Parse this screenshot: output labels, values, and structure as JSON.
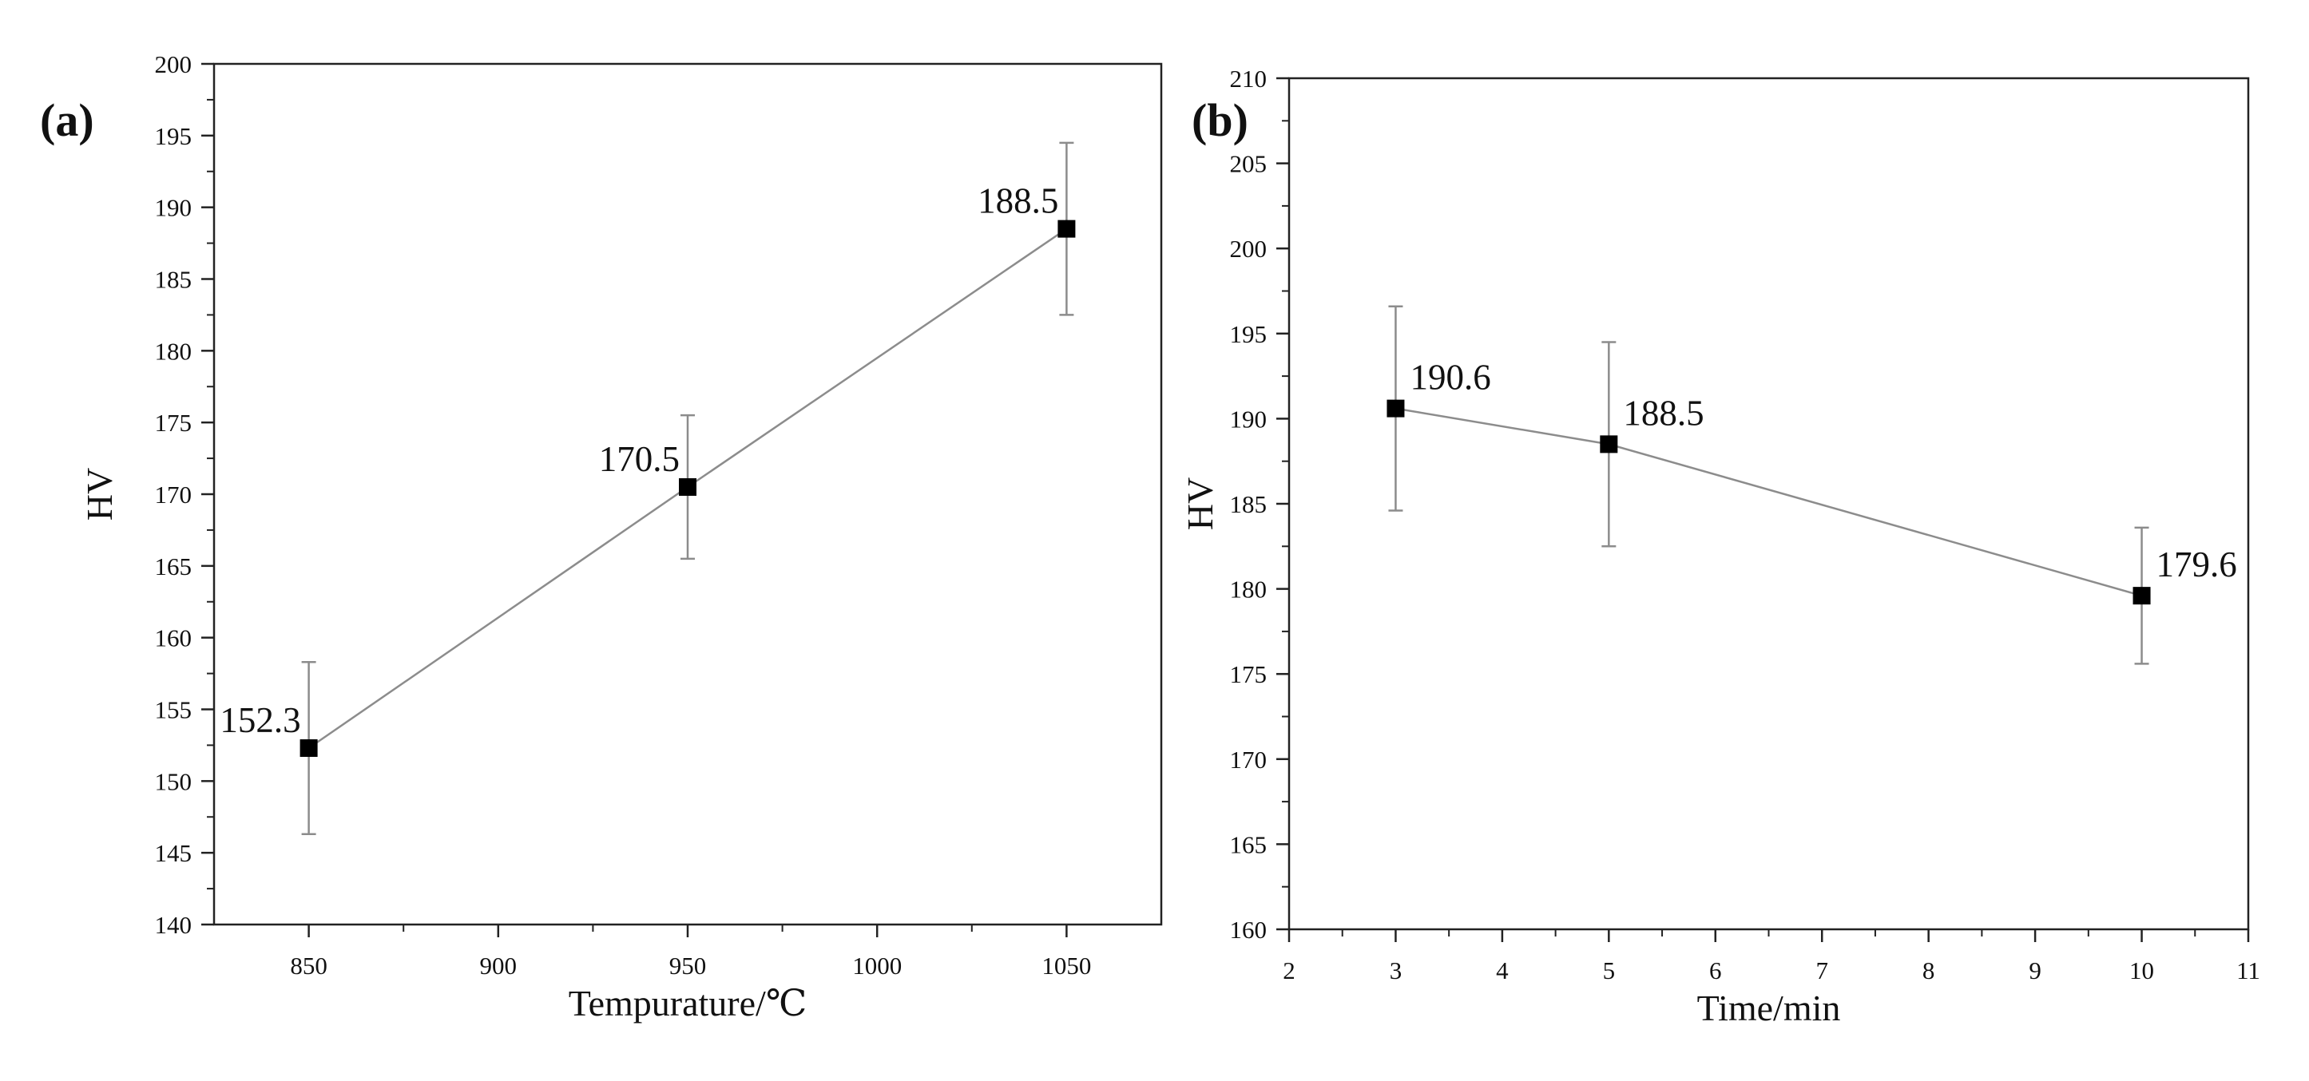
{
  "chart_data": [
    {
      "panel_label": "(a)",
      "type": "line",
      "xlabel": "Tempurature/℃",
      "ylabel": "HV",
      "xlim": [
        825,
        1075
      ],
      "ylim": [
        140,
        200
      ],
      "xticks": [
        850,
        900,
        950,
        1000,
        1050
      ],
      "yticks": [
        140,
        145,
        150,
        155,
        160,
        165,
        170,
        175,
        180,
        185,
        190,
        195,
        200
      ],
      "grid": false,
      "series": [
        {
          "x": [
            850,
            950,
            1050
          ],
          "y": [
            152.3,
            170.5,
            188.5
          ],
          "error": [
            6,
            5,
            6
          ],
          "labels": [
            "152.3",
            "170.5",
            "188.5"
          ],
          "marker": "square",
          "line_color": "#8c8c8c",
          "marker_color": "#000000"
        }
      ]
    },
    {
      "panel_label": "(b)",
      "type": "line",
      "xlabel": "Time/min",
      "ylabel": "HV",
      "xlim": [
        2,
        11
      ],
      "ylim": [
        160,
        210
      ],
      "xticks": [
        2,
        3,
        4,
        5,
        6,
        7,
        8,
        9,
        10,
        11
      ],
      "yticks": [
        160,
        165,
        170,
        175,
        180,
        185,
        190,
        195,
        200,
        205,
        210
      ],
      "grid": false,
      "series": [
        {
          "x": [
            3,
            5,
            10
          ],
          "y": [
            190.6,
            188.5,
            179.6
          ],
          "error": [
            6,
            6,
            4
          ],
          "labels": [
            "190.6",
            "188.5",
            "179.6"
          ],
          "marker": "square",
          "line_color": "#8c8c8c",
          "marker_color": "#000000"
        }
      ]
    }
  ]
}
